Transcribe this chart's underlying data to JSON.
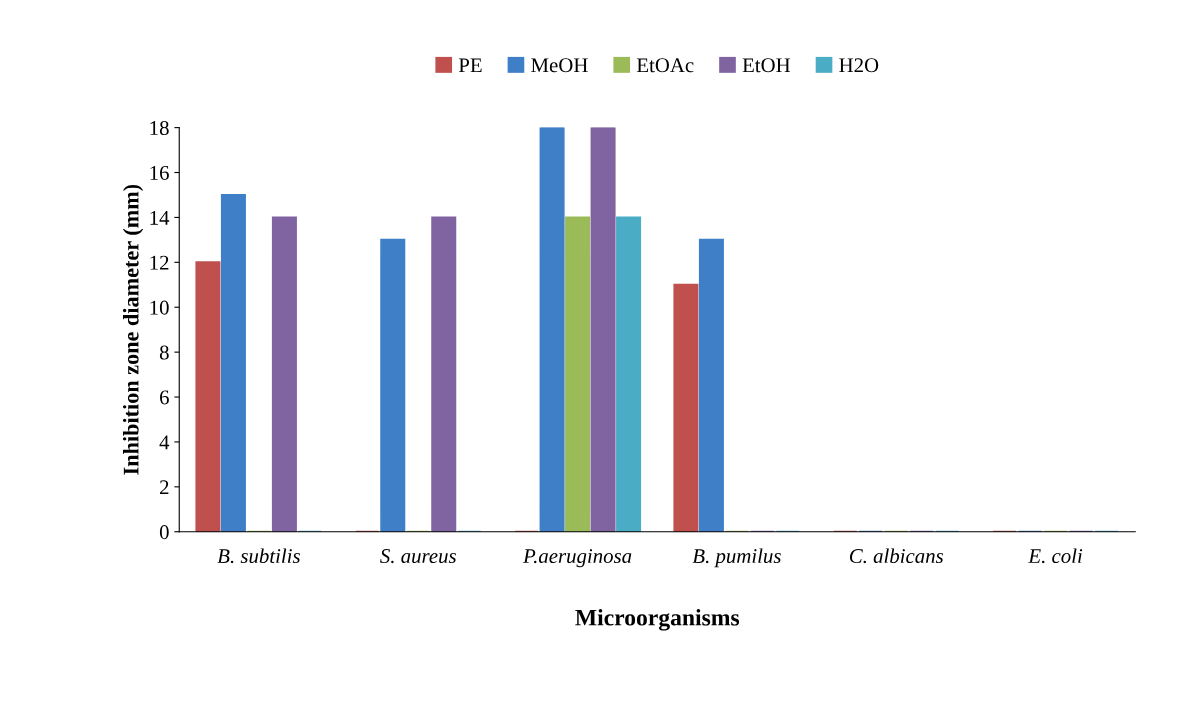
{
  "chart_data": {
    "type": "bar",
    "xlabel": "Microorganisms",
    "ylabel": "Inhibition zone diameter (mm)",
    "categories": [
      "B. subtilis",
      "S. aureus",
      "P.aeruginosa",
      "B. pumilus",
      "C. albicans",
      "E. coli"
    ],
    "series": [
      {
        "name": "PE",
        "color": "#c0504d",
        "values": [
          12,
          0,
          0,
          11,
          0,
          0
        ]
      },
      {
        "name": "MeOH",
        "color": "#3f7fc8",
        "values": [
          15,
          13,
          18,
          13,
          0,
          0
        ]
      },
      {
        "name": "EtOAc",
        "color": "#9bbb59",
        "values": [
          0,
          0,
          14,
          0,
          0,
          0
        ]
      },
      {
        "name": "EtOH",
        "color": "#8064a2",
        "values": [
          14,
          14,
          18,
          0,
          0,
          0
        ]
      },
      {
        "name": "H2O",
        "color": "#4bacc6",
        "values": [
          0,
          0,
          14,
          0,
          0,
          0
        ]
      }
    ],
    "ylim": [
      0,
      18
    ],
    "yticks": [
      0,
      2,
      4,
      6,
      8,
      10,
      12,
      14,
      16,
      18
    ],
    "grid": false,
    "legend": "top"
  }
}
